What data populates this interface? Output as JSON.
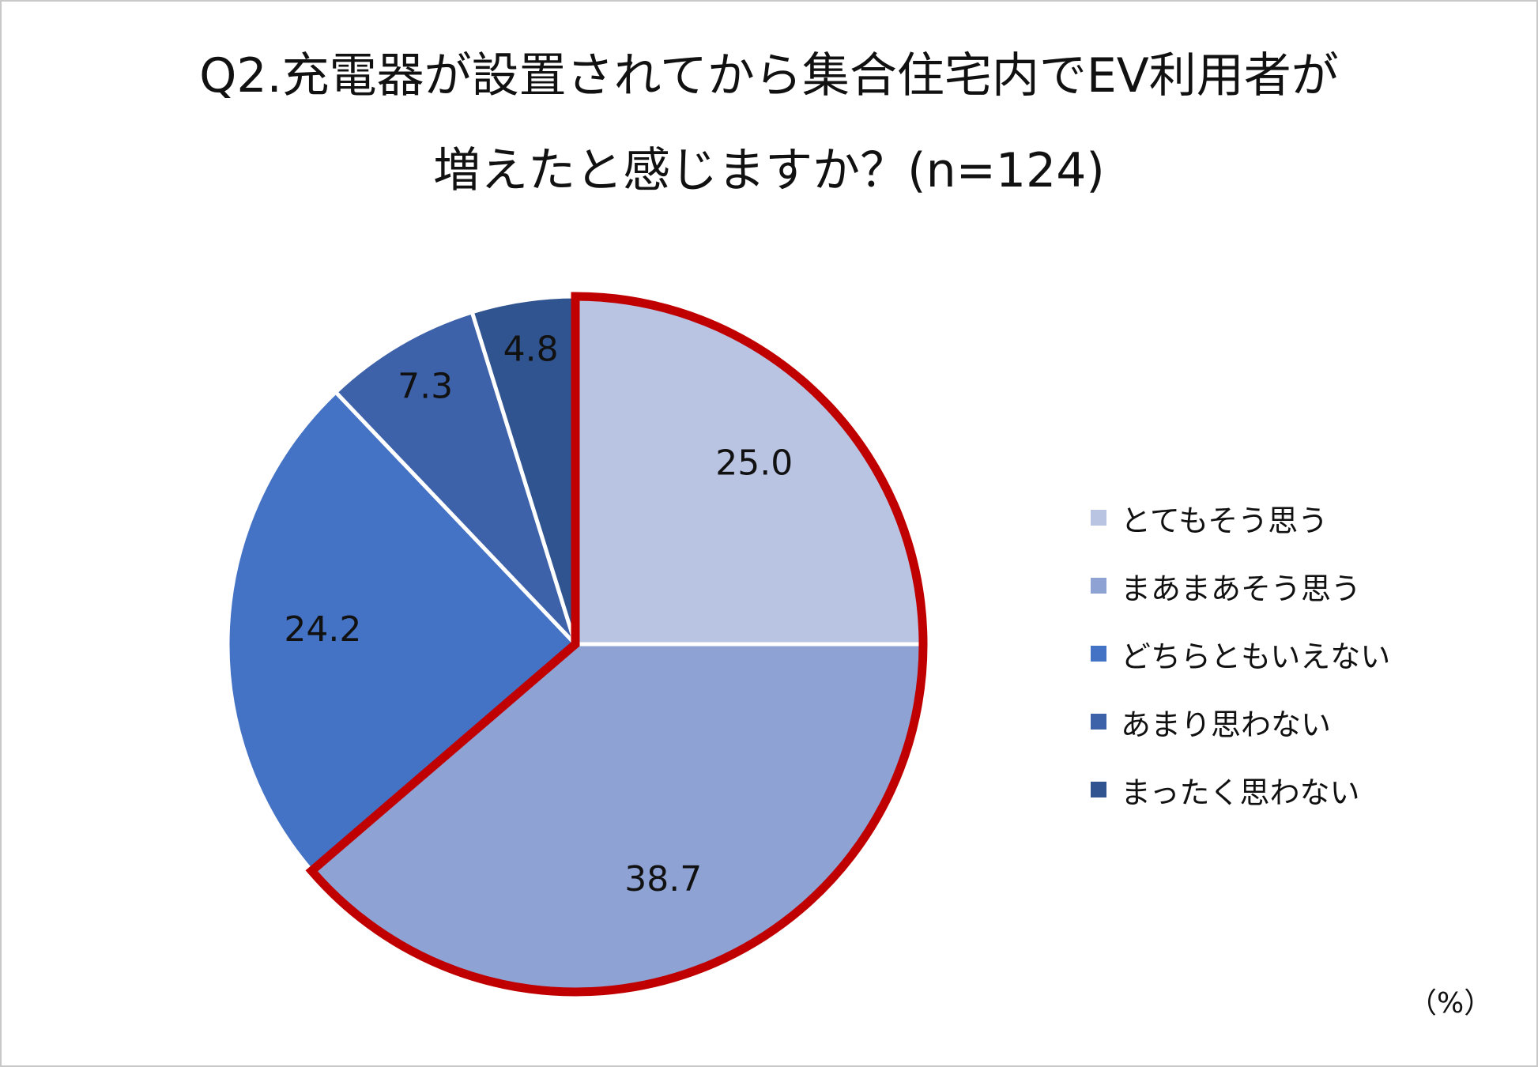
{
  "chart_data": {
    "type": "pie",
    "title_line1": "Q2.充電器が設置されてから集合住宅内でEV利用者が",
    "title_line2": "増えたと感じますか？(n=124)",
    "unit": "（%）",
    "slices": [
      {
        "label": "とてもそう思う",
        "value": 25.0,
        "value_label": "25.0",
        "color": "#b9c3e2"
      },
      {
        "label": "まあまあそう思う",
        "value": 38.7,
        "value_label": "38.7",
        "color": "#8ea3d4"
      },
      {
        "label": "どちらともいえない",
        "value": 24.2,
        "value_label": "24.2",
        "color": "#4472c4"
      },
      {
        "label": "あまり思わない",
        "value": 7.3,
        "value_label": "7.3",
        "color": "#3d62aa"
      },
      {
        "label": "まったく思わない",
        "value": 4.8,
        "value_label": "4.8",
        "color": "#30548f"
      }
    ],
    "highlighted_slices": [
      "とてもそう思う",
      "まあまあそう思う"
    ],
    "highlight_color": "#c00000",
    "legend_position": "right"
  }
}
